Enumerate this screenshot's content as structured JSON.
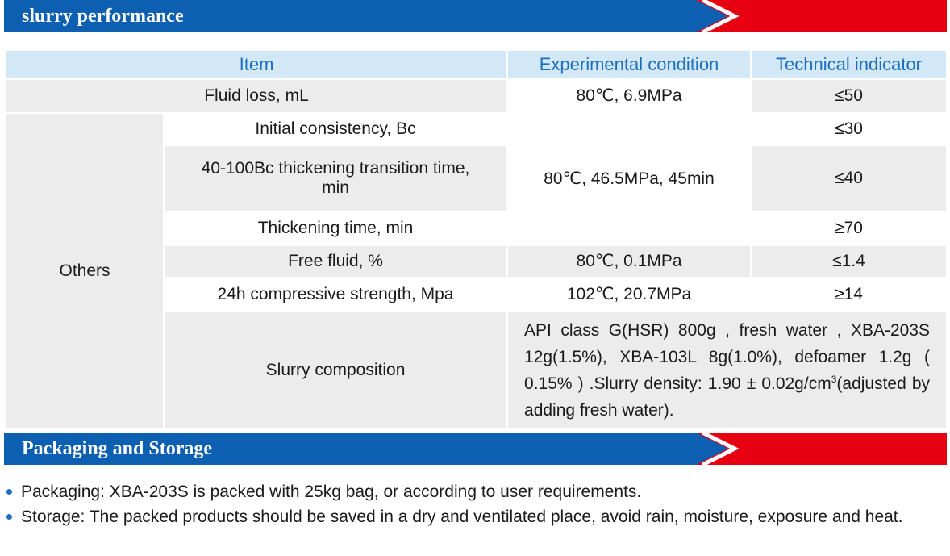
{
  "sections": {
    "slurry_title": "slurry performance",
    "packaging_title": "Packaging and Storage"
  },
  "colors": {
    "banner_blue": "#0d5fb2",
    "banner_red": "#e60012",
    "header_bg": "#d3e8f6",
    "header_text": "#1a6fbf",
    "row_gray": "#ececec"
  },
  "table": {
    "headers": {
      "item": "Item",
      "condition": "Experimental condition",
      "indicator": "Technical indicator"
    },
    "fluid_loss": {
      "item": "Fluid loss, mL",
      "condition": "80℃, 6.9MPa",
      "indicator": "≤50"
    },
    "others_label": "Others",
    "others_condition": "80℃, 46.5MPa, 45min",
    "rows": [
      {
        "item": "Initial consistency, Bc",
        "indicator": "≤30"
      },
      {
        "item": "40-100Bc thickening transition time, min",
        "indicator": "≤40"
      },
      {
        "item": "Thickening time, min",
        "indicator": "≥70"
      },
      {
        "item": "Free fluid, %",
        "condition": "80℃, 0.1MPa",
        "indicator": "≤1.4"
      },
      {
        "item": "24h compressive strength, Mpa",
        "condition": "102℃, 20.7MPa",
        "indicator": "≥14"
      }
    ],
    "slurry_label": "Slurry composition",
    "slurry_text_1": "API class G(HSR) 800g , fresh water , XBA-203S 12g(1.5%), XBA-103L 8g(1.0%), defoamer 1.2g ( 0.15% ) .Slurry density: 1.90 ± 0.02g/cm",
    "slurry_sup": "3",
    "slurry_text_2": "(adjusted by adding fresh water)."
  },
  "packaging": {
    "items": [
      "Packaging: XBA-203S is packed with 25kg bag, or according to user requirements.",
      "Storage: The packed products should be saved in a dry and ventilated place, avoid rain, moisture, exposure and heat."
    ]
  }
}
